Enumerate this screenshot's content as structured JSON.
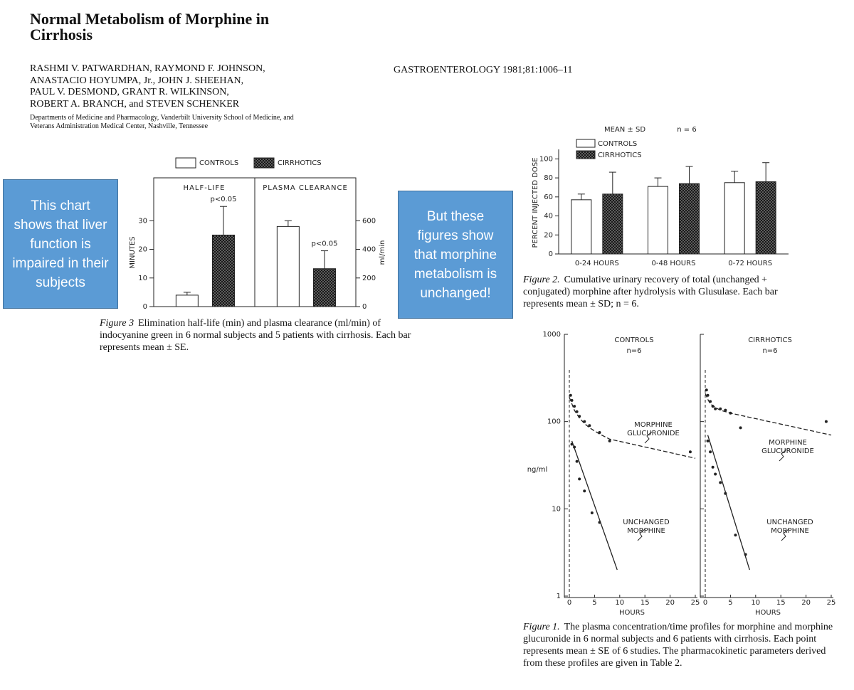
{
  "header": {
    "title_lines": [
      "Normal Metabolism of Morphine in",
      "Cirrhosis"
    ],
    "author_lines": [
      "RASHMI V. PATWARDHAN, RAYMOND F. JOHNSON,",
      "ANASTACIO HOYUMPA, Jr., JOHN J. SHEEHAN,",
      "PAUL V. DESMOND, GRANT R. WILKINSON,",
      "ROBERT A. BRANCH, and STEVEN SCHENKER"
    ],
    "affiliation_lines": [
      "Departments of Medicine and Pharmacology, Vanderbilt University School of Medicine, and",
      "Veterans Administration Medical Center, Nashville, Tennessee"
    ],
    "journal": "GASTROENTEROLOGY 1981;81:1006–11"
  },
  "callouts": [
    "This chart shows that liver function is impaired in their subjects",
    "But these figures show that morphine metabolism is unchanged!"
  ],
  "chart_data": [
    {
      "type": "bar",
      "series": [
        {
          "name": "CONTROLS",
          "color": "#ffffff",
          "hatch": false
        },
        {
          "name": "CIRRHOTICS",
          "color": "#444444",
          "hatch": true
        }
      ],
      "panels": [
        {
          "title": "HALF-LIFE",
          "ylabel": "MINUTES",
          "side": "left",
          "ylim": [
            0,
            45
          ],
          "yticks": [
            0,
            10,
            20,
            30
          ],
          "values": [
            4,
            25
          ],
          "errors": [
            1,
            10
          ],
          "annotations": [
            {
              "bar": 1,
              "text": "p<0.05"
            }
          ]
        },
        {
          "title": "PLASMA CLEARANCE",
          "ylabel": "ml/min",
          "side": "right",
          "ylim": [
            0,
            900
          ],
          "yticks": [
            0,
            200,
            400,
            600
          ],
          "values": [
            560,
            265
          ],
          "errors": [
            40,
            125
          ],
          "annotations": [
            {
              "bar": 1,
              "text": "p<0.05"
            }
          ]
        }
      ],
      "caption": {
        "label": "Figure 3",
        "text": "Elimination half-life (min) and plasma clearance (ml/min) of indocyanine green in 6 normal subjects and 5 patients with cirrhosis. Each bar represents mean ± SE."
      }
    },
    {
      "type": "bar",
      "header": [
        "MEAN ± SD",
        "n = 6"
      ],
      "categories": [
        "0-24 HOURS",
        "0-48 HOURS",
        "0-72 HOURS"
      ],
      "series": [
        {
          "name": "CONTROLS",
          "color": "#ffffff",
          "hatch": false,
          "values": [
            57,
            71,
            75
          ],
          "errors": [
            6,
            9,
            12
          ]
        },
        {
          "name": "CIRRHOTICS",
          "color": "#444444",
          "hatch": true,
          "values": [
            63,
            74,
            76
          ],
          "errors": [
            23,
            18,
            20
          ]
        }
      ],
      "ylabel": "PERCENT INJECTED DOSE",
      "ylim": [
        0,
        110
      ],
      "yticks": [
        0,
        20,
        40,
        60,
        80,
        100
      ],
      "caption": {
        "label": "Figure 2.",
        "text": "Cumulative urinary recovery of total (unchanged + conjugated) morphine after hydrolysis with Glusulase. Each bar represents mean ± SD; n = 6."
      }
    },
    {
      "type": "line",
      "log_y": true,
      "ylabel": "ng/ml",
      "xlabel": "HOURS",
      "ylim": [
        1,
        1000
      ],
      "yticks": [
        1,
        10,
        100,
        1000
      ],
      "xlim": [
        0,
        25
      ],
      "xticks": [
        0,
        5,
        10,
        15,
        20,
        25
      ],
      "panels": [
        {
          "title": "CONTROLS",
          "subtitle": "n=6",
          "series": [
            {
              "label": [
                "MORPHINE",
                "GLUCURONIDE"
              ],
              "dashed": true,
              "x": [
                0.25,
                0.5,
                1,
                1.5,
                2,
                3,
                4,
                6,
                8,
                24
              ],
              "values": [
                200,
                175,
                150,
                130,
                115,
                100,
                90,
                75,
                60,
                45
              ],
              "fit_x": [
                0,
                0.5,
                1,
                2,
                3,
                4,
                6,
                8,
                25
              ],
              "fit_y": [
                190,
                160,
                135,
                110,
                95,
                85,
                72,
                63,
                38
              ]
            },
            {
              "label": [
                "UNCHANGED",
                "MORPHINE"
              ],
              "dashed": false,
              "x": [
                0.5,
                1,
                1.5,
                2,
                3,
                4.5,
                6
              ],
              "values": [
                55,
                51,
                35,
                22,
                16,
                9,
                7
              ],
              "fit_x": [
                0.5,
                9.5
              ],
              "fit_y": [
                60,
                2
              ]
            }
          ]
        },
        {
          "title": "CIRRHOTICS",
          "subtitle": "n=6",
          "series": [
            {
              "label": [
                "MORPHINE",
                "GLUCURONIDE"
              ],
              "dashed": true,
              "x": [
                0.25,
                0.5,
                1,
                1.5,
                2,
                3,
                4,
                5,
                7,
                24
              ],
              "values": [
                230,
                200,
                170,
                150,
                140,
                140,
                135,
                125,
                85,
                100
              ],
              "fit_x": [
                0,
                0.5,
                1,
                2,
                3,
                5,
                25
              ],
              "fit_y": [
                210,
                180,
                160,
                145,
                135,
                125,
                70
              ]
            },
            {
              "label": [
                "UNCHANGED",
                "MORPHINE"
              ],
              "dashed": false,
              "x": [
                0.5,
                1,
                1.5,
                2,
                3,
                4,
                6,
                8
              ],
              "values": [
                60,
                45,
                30,
                25,
                20,
                15,
                5,
                3
              ],
              "fit_x": [
                0.5,
                8.8
              ],
              "fit_y": [
                70,
                2
              ]
            }
          ]
        }
      ],
      "caption": {
        "label": "Figure 1.",
        "text": "The plasma concentration/time profiles for morphine and morphine glucuronide in 6 normal subjects and 6 patients with cirrhosis. Each point represents mean ± SE of 6 studies. The pharmacokinetic parameters derived from these profiles are given in Table 2."
      }
    }
  ]
}
